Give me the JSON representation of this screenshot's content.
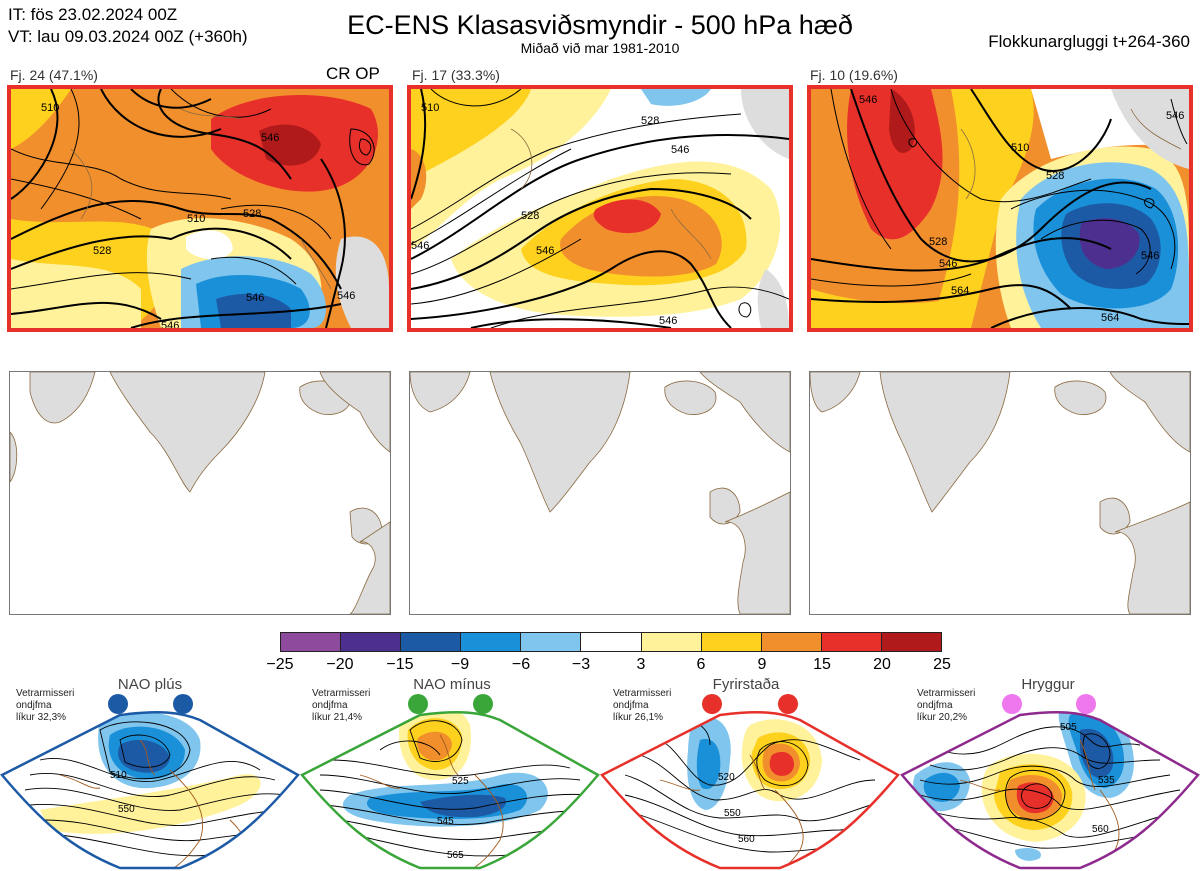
{
  "header": {
    "issue_time": "IT: fös 23.02.2024 00Z",
    "valid_time": "VT: lau 09.03.2024 00Z  (+360h)",
    "title": "EC-ENS Klasasviðsmyndir - 500 hPa hæð",
    "subtitle": "Miðað við mar 1981-2010",
    "window": "Flokkunargluggi t+264-360"
  },
  "clusters": [
    {
      "label": "Fj. 24 (47.1%)",
      "badge": "CR OP",
      "contours": [
        "510",
        "546",
        "510",
        "528",
        "528",
        "546",
        "546",
        "546"
      ]
    },
    {
      "label": "Fj. 17 (33.3%)",
      "badge": "",
      "contours": [
        "510",
        "528",
        "546",
        "528",
        "546",
        "546",
        "546"
      ]
    },
    {
      "label": "Fj. 10 (19.6%)",
      "badge": "",
      "contours": [
        "546",
        "510",
        "528",
        "546",
        "564",
        "564",
        "546",
        "528",
        "546"
      ]
    }
  ],
  "colorbar": {
    "colors": [
      "#8e4a9c",
      "#4c2f8f",
      "#1d5aa6",
      "#1a90d8",
      "#7fc5ee",
      "#ffffff",
      "#fff29a",
      "#fdd11e",
      "#f28f2d",
      "#e8302a",
      "#b01a1a"
    ],
    "ticks": [
      "−25",
      "−20",
      "−15",
      "−9",
      "−6",
      "−3",
      "3",
      "6",
      "9",
      "15",
      "20",
      "25"
    ]
  },
  "regimes": [
    {
      "name": "NAO plús",
      "season": "Vetrarmisseri",
      "mode": "ondjfma",
      "likelihood": "líkur 32,3%",
      "frame_color": "#1d5aa6",
      "dot_color": "#1d5aa6",
      "contours": [
        "510",
        "550"
      ]
    },
    {
      "name": "NAO mínus",
      "season": "Vetrarmisseri",
      "mode": "ondjfma",
      "likelihood": "líkur 21,4%",
      "frame_color": "#3aa63a",
      "dot_color": "#3aa63a",
      "contours": [
        "525",
        "545",
        "565"
      ]
    },
    {
      "name": "Fyrirstaða",
      "season": "Vetrarmisseri",
      "mode": "ondjfma",
      "likelihood": "líkur 26,1%",
      "frame_color": "#e8302a",
      "dot_color": "#e8302a",
      "contours": [
        "520",
        "550",
        "560"
      ]
    },
    {
      "name": "Hryggur",
      "season": "Vetrarmisseri",
      "mode": "ondjfma",
      "likelihood": "líkur 20,2%",
      "frame_color": "#8e2a8e",
      "dot_color": "#ee77ee",
      "contours": [
        "505",
        "535",
        "560"
      ]
    }
  ]
}
